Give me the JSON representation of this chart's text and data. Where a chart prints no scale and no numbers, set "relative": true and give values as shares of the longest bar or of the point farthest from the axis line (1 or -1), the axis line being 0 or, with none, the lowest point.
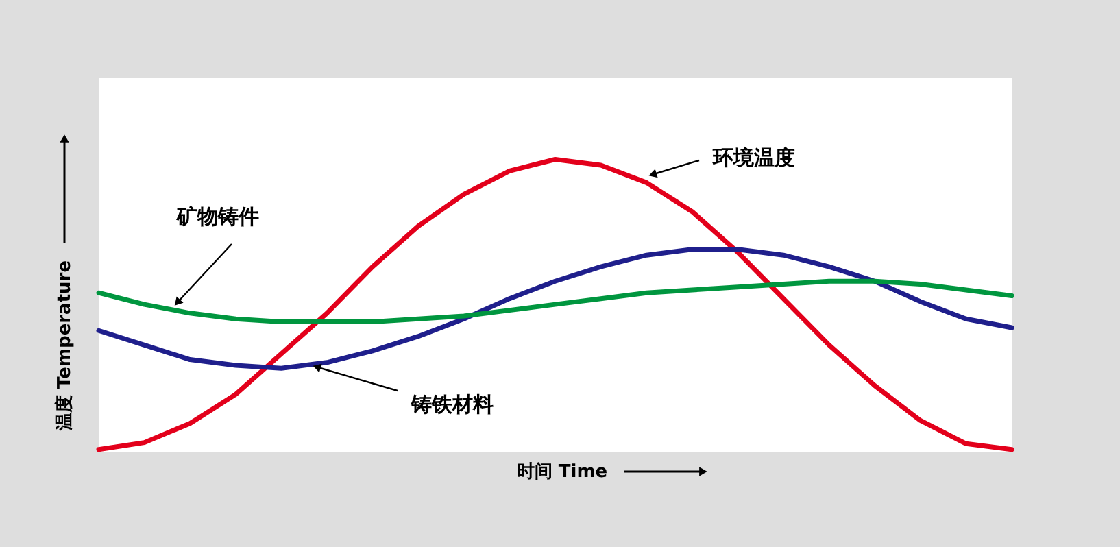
{
  "chart_data": {
    "type": "line",
    "relative": true,
    "legend": false,
    "xlabel": "时间 Time",
    "ylabel": "温度 Temperature",
    "categories": [
      null,
      null,
      null,
      null,
      null,
      null,
      null,
      null,
      null,
      null,
      null,
      null,
      null,
      null,
      null,
      null,
      null,
      null,
      null,
      null,
      null
    ],
    "series": [
      {
        "name": "环境温度",
        "color": "#e3001b",
        "values": [
          0,
          0.024,
          0.09,
          0.19,
          0.33,
          0.47,
          0.63,
          0.77,
          0.88,
          0.96,
          1.0,
          0.98,
          0.92,
          0.82,
          0.68,
          0.52,
          0.36,
          0.22,
          0.1,
          0.02,
          0
        ]
      },
      {
        "name": "铸铁材料",
        "color": "#1f1f8c",
        "values": [
          0.41,
          0.36,
          0.31,
          0.29,
          0.28,
          0.3,
          0.34,
          0.39,
          0.45,
          0.52,
          0.58,
          0.63,
          0.67,
          0.69,
          0.69,
          0.67,
          0.63,
          0.58,
          0.51,
          0.45,
          0.42
        ]
      },
      {
        "name": "矿物铸件",
        "color": "#00963f",
        "values": [
          0.54,
          0.5,
          0.47,
          0.45,
          0.44,
          0.44,
          0.44,
          0.45,
          0.46,
          0.48,
          0.5,
          0.52,
          0.54,
          0.55,
          0.56,
          0.57,
          0.58,
          0.58,
          0.57,
          0.55,
          0.53
        ]
      }
    ]
  }
}
